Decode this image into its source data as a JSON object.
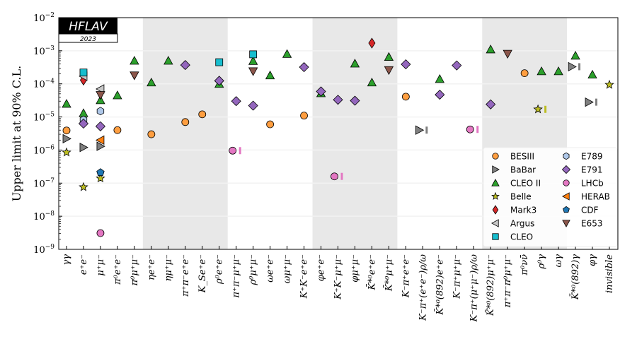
{
  "chart_data": {
    "type": "scatter",
    "title": "",
    "logo": {
      "name": "HFLAV",
      "year": "2023"
    },
    "ylabel": "Upper limit at 90% C.L.",
    "xlabel": "",
    "yscale": "log",
    "ylim": [
      1e-09,
      0.01
    ],
    "yticks": [
      {
        "value": 0.01,
        "base": "10",
        "exp": "−2"
      },
      {
        "value": 0.001,
        "base": "10",
        "exp": "−3"
      },
      {
        "value": 0.0001,
        "base": "10",
        "exp": "−4"
      },
      {
        "value": 1e-05,
        "base": "10",
        "exp": "−5"
      },
      {
        "value": 1e-06,
        "base": "10",
        "exp": "−6"
      },
      {
        "value": 1e-07,
        "base": "10",
        "exp": "−7"
      },
      {
        "value": 1e-08,
        "base": "10",
        "exp": "−8"
      },
      {
        "value": 1e-09,
        "base": "10",
        "exp": "−9"
      }
    ],
    "grid": "horizontal at decades",
    "shaded_category_ranges": [
      [
        5,
        9
      ],
      [
        15,
        19
      ],
      [
        25,
        29
      ]
    ],
    "categories": [
      "γγ",
      "e⁺e⁻",
      "μ⁺μ⁻",
      "π⁰e⁺e⁻",
      "π⁰μ⁺μ⁻",
      "ηe⁺e⁻",
      "ημ⁺μ⁻",
      "π⁺π⁻e⁺e⁻",
      "K_Se⁺e⁻",
      "ρ⁰e⁺e⁻",
      "π⁺π⁻μ⁺μ⁻",
      "ρ⁰μ⁺μ⁻",
      "ωe⁺e⁻",
      "ωμ⁺μ⁻",
      "K⁺K⁻e⁺e⁻",
      "φe⁺e⁻",
      "K⁺K⁻μ⁺μ⁻",
      "φμ⁺μ⁻",
      "K̄*⁰e⁺e⁻",
      "K̄*⁰μ⁺μ⁻",
      "K⁻π⁺e⁺e⁻",
      "K⁻π⁺(e⁺e⁻)ρ/ω",
      "K̄*⁰(892)e⁺e⁻",
      "K⁻π⁺μ⁺μ⁻",
      "K⁻π⁺(μ⁺μ⁻)ρ/ω",
      "K̄*⁰(892)μ⁺μ⁻",
      "π⁺π⁻π⁰μ⁺μ⁻",
      "π⁰νν̄",
      "ρ⁰γ",
      "ωγ",
      "K̄*⁰(892)γ",
      "φγ",
      "invisible"
    ],
    "legend_position": "lower-right",
    "series": [
      {
        "name": "BESIII",
        "marker": "circle",
        "color": "#ff9e40",
        "points": [
          {
            "c": 0,
            "v": 3.9e-06
          },
          {
            "c": 3,
            "v": 4e-06
          },
          {
            "c": 5,
            "v": 3e-06
          },
          {
            "c": 7,
            "v": 7e-06
          },
          {
            "c": 8,
            "v": 1.2e-05
          },
          {
            "c": 12,
            "v": 6e-06
          },
          {
            "c": 14,
            "v": 1.1e-05
          },
          {
            "c": 20,
            "v": 4.1e-05
          },
          {
            "c": 27,
            "v": 0.00021
          }
        ]
      },
      {
        "name": "BaBar",
        "marker": "triangle-right",
        "color": "#7f7f7f",
        "points": [
          {
            "c": 0,
            "v": 2.2e-06
          },
          {
            "c": 1,
            "v": 1.2e-06
          },
          {
            "c": 2,
            "v": 1.3e-06
          },
          {
            "c": 21,
            "v": 4e-06,
            "new": true
          },
          {
            "c": 30,
            "v": 0.00033,
            "new": true
          },
          {
            "c": 31,
            "v": 2.8e-05,
            "new": true
          }
        ]
      },
      {
        "name": "CLEO II",
        "marker": "triangle-up",
        "color": "#2ca02c",
        "points": [
          {
            "c": 0,
            "v": 2.5e-05
          },
          {
            "c": 1,
            "v": 1.3e-05
          },
          {
            "c": 2,
            "v": 3.2e-05
          },
          {
            "c": 3,
            "v": 4.5e-05
          },
          {
            "c": 4,
            "v": 0.0005
          },
          {
            "c": 5,
            "v": 0.00011
          },
          {
            "c": 6,
            "v": 0.0005
          },
          {
            "c": 9,
            "v": 0.0001
          },
          {
            "c": 11,
            "v": 0.00049
          },
          {
            "c": 12,
            "v": 0.00018
          },
          {
            "c": 13,
            "v": 0.0008
          },
          {
            "c": 15,
            "v": 5.2e-05
          },
          {
            "c": 17,
            "v": 0.00041
          },
          {
            "c": 18,
            "v": 0.00011
          },
          {
            "c": 19,
            "v": 0.00065
          },
          {
            "c": 22,
            "v": 0.00014
          },
          {
            "c": 25,
            "v": 0.0011
          },
          {
            "c": 28,
            "v": 0.00024
          },
          {
            "c": 29,
            "v": 0.00024
          },
          {
            "c": 30,
            "v": 0.00071
          },
          {
            "c": 31,
            "v": 0.00019
          }
        ]
      },
      {
        "name": "Belle",
        "marker": "star",
        "color": "#bcbd22",
        "points": [
          {
            "c": 0,
            "v": 8.5e-07
          },
          {
            "c": 1,
            "v": 7.6e-08
          },
          {
            "c": 2,
            "v": 1.4e-07
          },
          {
            "c": 28,
            "v": 1.7e-05,
            "new": true
          },
          {
            "c": 32,
            "v": 9.4e-05
          }
        ]
      },
      {
        "name": "Mark3",
        "marker": "thin-diamond",
        "color": "#d62728",
        "points": [
          {
            "c": 1,
            "v": 0.00013
          },
          {
            "c": 18,
            "v": 0.0017
          }
        ]
      },
      {
        "name": "Argus",
        "marker": "triangle-left",
        "color": "#c7c7c7",
        "points": [
          {
            "c": 1,
            "v": 0.00017
          },
          {
            "c": 2,
            "v": 7e-05
          }
        ]
      },
      {
        "name": "CLEO",
        "marker": "square",
        "color": "#17becf",
        "points": [
          {
            "c": 1,
            "v": 0.00022
          },
          {
            "c": 9,
            "v": 0.00045
          },
          {
            "c": 11,
            "v": 0.00078
          }
        ]
      },
      {
        "name": "E789",
        "marker": "hexagon",
        "color": "#aec7e8",
        "points": [
          {
            "c": 1,
            "v": 8.2e-06
          },
          {
            "c": 2,
            "v": 1.5e-05
          }
        ]
      },
      {
        "name": "E791",
        "marker": "diamond",
        "color": "#9467bd",
        "points": [
          {
            "c": 1,
            "v": 6.3e-06
          },
          {
            "c": 2,
            "v": 5.2e-06
          },
          {
            "c": 7,
            "v": 0.00037
          },
          {
            "c": 9,
            "v": 0.000124
          },
          {
            "c": 10,
            "v": 3e-05
          },
          {
            "c": 11,
            "v": 2.2e-05
          },
          {
            "c": 14,
            "v": 0.00032
          },
          {
            "c": 15,
            "v": 5.9e-05
          },
          {
            "c": 16,
            "v": 3.3e-05
          },
          {
            "c": 17,
            "v": 3.1e-05
          },
          {
            "c": 20,
            "v": 0.00039
          },
          {
            "c": 22,
            "v": 4.7e-05
          },
          {
            "c": 23,
            "v": 0.00036
          },
          {
            "c": 25,
            "v": 2.4e-05
          }
        ]
      },
      {
        "name": "LHCb",
        "marker": "circle",
        "color": "#e377c2",
        "points": [
          {
            "c": 2,
            "v": 3.1e-09
          },
          {
            "c": 10,
            "v": 9.6e-07,
            "new": true
          },
          {
            "c": 16,
            "v": 1.6e-07,
            "new": true
          },
          {
            "c": 24,
            "v": 4.2e-06,
            "new": true
          }
        ]
      },
      {
        "name": "HERAB",
        "marker": "triangle-left",
        "color": "#ff7f0e",
        "points": [
          {
            "c": 2,
            "v": 2e-06
          }
        ]
      },
      {
        "name": "CDF",
        "marker": "pentagon",
        "color": "#1f77b4",
        "points": [
          {
            "c": 2,
            "v": 2.1e-07
          }
        ]
      },
      {
        "name": "E653",
        "marker": "triangle-down",
        "color": "#8c564b",
        "points": [
          {
            "c": 2,
            "v": 4.6e-05
          },
          {
            "c": 4,
            "v": 0.00018
          },
          {
            "c": 11,
            "v": 0.00024
          },
          {
            "c": 19,
            "v": 0.00026
          },
          {
            "c": 26,
            "v": 0.00081
          }
        ]
      }
    ]
  }
}
